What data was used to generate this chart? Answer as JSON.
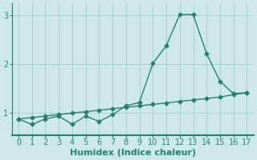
{
  "title": "",
  "xlabel": "Humidex (Indice chaleur)",
  "background_color": "#cce8eb",
  "grid_color": "#aacdd2",
  "line_color": "#2a7d6e",
  "axis_bottom_color": "#4a9a8a",
  "x_values": [
    0,
    1,
    2,
    3,
    4,
    5,
    6,
    7,
    8,
    9,
    10,
    11,
    12,
    13,
    14,
    15,
    16,
    17
  ],
  "y1_values": [
    0.88,
    0.77,
    0.88,
    0.94,
    0.77,
    0.94,
    0.83,
    0.97,
    1.15,
    1.22,
    2.02,
    2.38,
    3.02,
    3.02,
    2.22,
    1.65,
    1.4,
    1.42
  ],
  "y2_values": [
    0.88,
    0.91,
    0.94,
    0.97,
    1.0,
    1.03,
    1.06,
    1.09,
    1.12,
    1.15,
    1.18,
    1.21,
    1.24,
    1.27,
    1.3,
    1.33,
    1.38,
    1.42
  ],
  "ylim": [
    0.55,
    3.25
  ],
  "xlim": [
    -0.5,
    17.5
  ],
  "yticks": [
    1,
    2,
    3
  ],
  "xticks": [
    0,
    1,
    2,
    3,
    4,
    5,
    6,
    7,
    8,
    9,
    10,
    11,
    12,
    13,
    14,
    15,
    16,
    17
  ],
  "marker": "D",
  "marker_size": 2.5,
  "line_width": 1.0,
  "tick_fontsize": 7,
  "xlabel_fontsize": 8
}
